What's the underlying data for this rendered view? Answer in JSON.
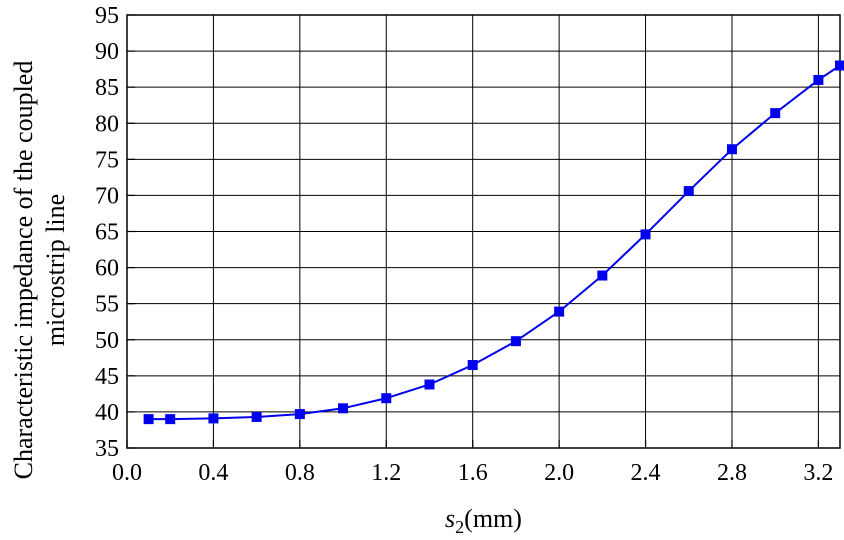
{
  "chart_data": {
    "type": "line",
    "xlabel": "s",
    "xlabel_sub": "2",
    "xlabel_unit": "(mm)",
    "ylabel_line1": "Characteristic impedance of the coupled",
    "ylabel_line2": "microstrip line",
    "xlim": [
      0.0,
      3.3
    ],
    "ylim": [
      35,
      95
    ],
    "xticks": [
      0.0,
      0.4,
      0.8,
      1.2,
      1.6,
      2.0,
      2.4,
      2.8,
      3.2
    ],
    "xtick_labels": [
      "0.0",
      "0.4",
      "0.8",
      "1.2",
      "1.6",
      "2.0",
      "2.4",
      "2.8",
      "3.2"
    ],
    "yticks": [
      35,
      40,
      45,
      50,
      55,
      60,
      65,
      70,
      75,
      80,
      85,
      90,
      95
    ],
    "ytick_labels": [
      "35",
      "40",
      "45",
      "50",
      "55",
      "60",
      "65",
      "70",
      "75",
      "80",
      "85",
      "90",
      "95"
    ],
    "grid": true,
    "series": [
      {
        "color": "#0000ee",
        "marker": "square",
        "x": [
          0.1,
          0.2,
          0.4,
          0.6,
          0.8,
          1.0,
          1.2,
          1.4,
          1.6,
          1.8,
          2.0,
          2.2,
          2.4,
          2.6,
          2.8,
          3.0,
          3.2,
          3.3
        ],
        "y": [
          39.0,
          39.0,
          39.1,
          39.3,
          39.7,
          40.5,
          41.9,
          43.8,
          46.5,
          49.8,
          53.9,
          58.9,
          64.6,
          70.6,
          76.4,
          81.4,
          86.0,
          88.0
        ]
      }
    ]
  }
}
